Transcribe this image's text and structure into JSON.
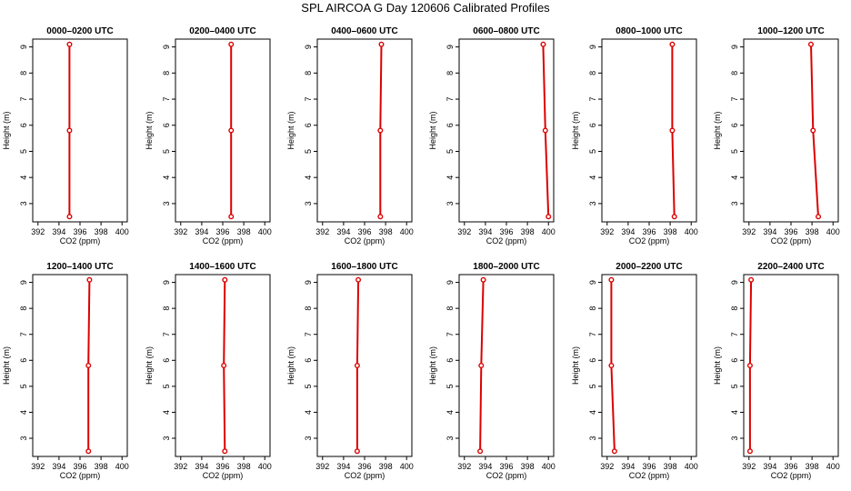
{
  "figure": {
    "title": "SPL AIRCOA G  Day 120606  Calibrated Profiles"
  },
  "chart_data": [
    {
      "type": "line",
      "title": "0000–0200 UTC",
      "xlabel": "CO2 (ppm)",
      "ylabel": "Height (m)",
      "xlim": [
        391.5,
        400.5
      ],
      "ylim": [
        2.3,
        9.3
      ],
      "xticks": [
        392,
        394,
        396,
        398,
        400
      ],
      "yticks": [
        3,
        4,
        5,
        6,
        7,
        8,
        9
      ],
      "series": [
        {
          "x": [
            395.0,
            395.0,
            395.0
          ],
          "y": [
            2.5,
            5.8,
            9.1
          ],
          "color": "#dd0000"
        }
      ]
    },
    {
      "type": "line",
      "title": "0200–0400 UTC",
      "xlabel": "CO2 (ppm)",
      "ylabel": "Height (m)",
      "xlim": [
        391.5,
        400.5
      ],
      "ylim": [
        2.3,
        9.3
      ],
      "xticks": [
        392,
        394,
        396,
        398,
        400
      ],
      "yticks": [
        3,
        4,
        5,
        6,
        7,
        8,
        9
      ],
      "series": [
        {
          "x": [
            396.8,
            396.8,
            396.8
          ],
          "y": [
            2.5,
            5.8,
            9.1
          ],
          "color": "#dd0000"
        }
      ]
    },
    {
      "type": "line",
      "title": "0400–0600 UTC",
      "xlabel": "CO2 (ppm)",
      "ylabel": "Height (m)",
      "xlim": [
        391.5,
        400.5
      ],
      "ylim": [
        2.3,
        9.3
      ],
      "xticks": [
        392,
        394,
        396,
        398,
        400
      ],
      "yticks": [
        3,
        4,
        5,
        6,
        7,
        8,
        9
      ],
      "series": [
        {
          "x": [
            397.5,
            397.5,
            397.6
          ],
          "y": [
            2.5,
            5.8,
            9.1
          ],
          "color": "#dd0000"
        }
      ]
    },
    {
      "type": "line",
      "title": "0600–0800 UTC",
      "xlabel": "CO2 (ppm)",
      "ylabel": "Height (m)",
      "xlim": [
        391.5,
        400.5
      ],
      "ylim": [
        2.3,
        9.3
      ],
      "xticks": [
        392,
        394,
        396,
        398,
        400
      ],
      "yticks": [
        3,
        4,
        5,
        6,
        7,
        8,
        9
      ],
      "series": [
        {
          "x": [
            400.0,
            399.7,
            399.5
          ],
          "y": [
            2.5,
            5.8,
            9.1
          ],
          "color": "#dd0000"
        }
      ]
    },
    {
      "type": "line",
      "title": "0800–1000 UTC",
      "xlabel": "CO2 (ppm)",
      "ylabel": "Height (m)",
      "xlim": [
        391.5,
        400.5
      ],
      "ylim": [
        2.3,
        9.3
      ],
      "xticks": [
        392,
        394,
        396,
        398,
        400
      ],
      "yticks": [
        3,
        4,
        5,
        6,
        7,
        8,
        9
      ],
      "series": [
        {
          "x": [
            398.4,
            398.2,
            398.2
          ],
          "y": [
            2.5,
            5.8,
            9.1
          ],
          "color": "#dd0000"
        }
      ]
    },
    {
      "type": "line",
      "title": "1000–1200 UTC",
      "xlabel": "CO2 (ppm)",
      "ylabel": "Height (m)",
      "xlim": [
        391.5,
        400.5
      ],
      "ylim": [
        2.3,
        9.3
      ],
      "xticks": [
        392,
        394,
        396,
        398,
        400
      ],
      "yticks": [
        3,
        4,
        5,
        6,
        7,
        8,
        9
      ],
      "series": [
        {
          "x": [
            398.6,
            398.1,
            397.9
          ],
          "y": [
            2.5,
            5.8,
            9.1
          ],
          "color": "#dd0000"
        }
      ]
    },
    {
      "type": "line",
      "title": "1200–1400 UTC",
      "xlabel": "CO2 (ppm)",
      "ylabel": "Height (m)",
      "xlim": [
        391.5,
        400.5
      ],
      "ylim": [
        2.3,
        9.3
      ],
      "xticks": [
        392,
        394,
        396,
        398,
        400
      ],
      "yticks": [
        3,
        4,
        5,
        6,
        7,
        8,
        9
      ],
      "series": [
        {
          "x": [
            396.8,
            396.8,
            396.9
          ],
          "y": [
            2.5,
            5.8,
            9.1
          ],
          "color": "#dd0000"
        }
      ]
    },
    {
      "type": "line",
      "title": "1400–1600 UTC",
      "xlabel": "CO2 (ppm)",
      "ylabel": "Height (m)",
      "xlim": [
        391.5,
        400.5
      ],
      "ylim": [
        2.3,
        9.3
      ],
      "xticks": [
        392,
        394,
        396,
        398,
        400
      ],
      "yticks": [
        3,
        4,
        5,
        6,
        7,
        8,
        9
      ],
      "series": [
        {
          "x": [
            396.2,
            396.1,
            396.2
          ],
          "y": [
            2.5,
            5.8,
            9.1
          ],
          "color": "#dd0000"
        }
      ]
    },
    {
      "type": "line",
      "title": "1600–1800 UTC",
      "xlabel": "CO2 (ppm)",
      "ylabel": "Height (m)",
      "xlim": [
        391.5,
        400.5
      ],
      "ylim": [
        2.3,
        9.3
      ],
      "xticks": [
        392,
        394,
        396,
        398,
        400
      ],
      "yticks": [
        3,
        4,
        5,
        6,
        7,
        8,
        9
      ],
      "series": [
        {
          "x": [
            395.3,
            395.3,
            395.4
          ],
          "y": [
            2.5,
            5.8,
            9.1
          ],
          "color": "#dd0000"
        }
      ]
    },
    {
      "type": "line",
      "title": "1800–2000 UTC",
      "xlabel": "CO2 (ppm)",
      "ylabel": "Height (m)",
      "xlim": [
        391.5,
        400.5
      ],
      "ylim": [
        2.3,
        9.3
      ],
      "xticks": [
        392,
        394,
        396,
        398,
        400
      ],
      "yticks": [
        3,
        4,
        5,
        6,
        7,
        8,
        9
      ],
      "series": [
        {
          "x": [
            393.5,
            393.6,
            393.8
          ],
          "y": [
            2.5,
            5.8,
            9.1
          ],
          "color": "#dd0000"
        }
      ]
    },
    {
      "type": "line",
      "title": "2000–2200 UTC",
      "xlabel": "CO2 (ppm)",
      "ylabel": "Height (m)",
      "xlim": [
        391.5,
        400.5
      ],
      "ylim": [
        2.3,
        9.3
      ],
      "xticks": [
        392,
        394,
        396,
        398,
        400
      ],
      "yticks": [
        3,
        4,
        5,
        6,
        7,
        8,
        9
      ],
      "series": [
        {
          "x": [
            392.7,
            392.4,
            392.4
          ],
          "y": [
            2.5,
            5.8,
            9.1
          ],
          "color": "#dd0000"
        }
      ]
    },
    {
      "type": "line",
      "title": "2200–2400 UTC",
      "xlabel": "CO2 (ppm)",
      "ylabel": "Height (m)",
      "xlim": [
        391.5,
        400.5
      ],
      "ylim": [
        2.3,
        9.3
      ],
      "xticks": [
        392,
        394,
        396,
        398,
        400
      ],
      "yticks": [
        3,
        4,
        5,
        6,
        7,
        8,
        9
      ],
      "series": [
        {
          "x": [
            392.1,
            392.1,
            392.2
          ],
          "y": [
            2.5,
            5.8,
            9.1
          ],
          "color": "#dd0000"
        }
      ]
    }
  ]
}
